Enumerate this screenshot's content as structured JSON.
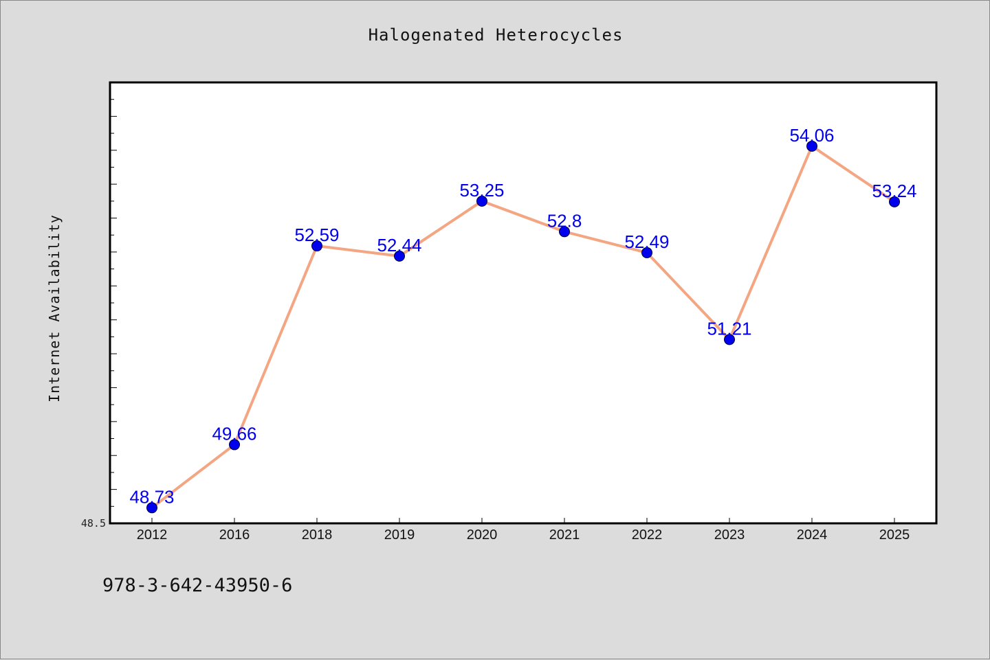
{
  "chart_data": {
    "type": "line",
    "title": "Halogenated Heterocycles",
    "xlabel": "",
    "ylabel": "Internet Availability",
    "categories": [
      "2012",
      "2016",
      "2018",
      "2019",
      "2020",
      "2021",
      "2022",
      "2023",
      "2024",
      "2025"
    ],
    "series": [
      {
        "values": [
          48.73,
          49.66,
          52.59,
          52.44,
          53.25,
          52.8,
          52.49,
          51.21,
          54.06,
          53.24
        ]
      }
    ],
    "data_labels": [
      "48.73",
      "49.66",
      "52.59",
      "52.44",
      "53.25",
      "52.8",
      "52.49",
      "51.21",
      "54.06",
      "53.24"
    ],
    "ylim": [
      48.5,
      55.0
    ],
    "y_tick_labels": [
      "48.5"
    ],
    "grid": false,
    "colors": {
      "line": "#f4a582",
      "marker": "#0000ee",
      "label": "#0000ee",
      "plot_bg": "#ffffff",
      "page_bg": "#dcdcdc"
    }
  },
  "footer": {
    "code": "978-3-642-43950-6"
  }
}
